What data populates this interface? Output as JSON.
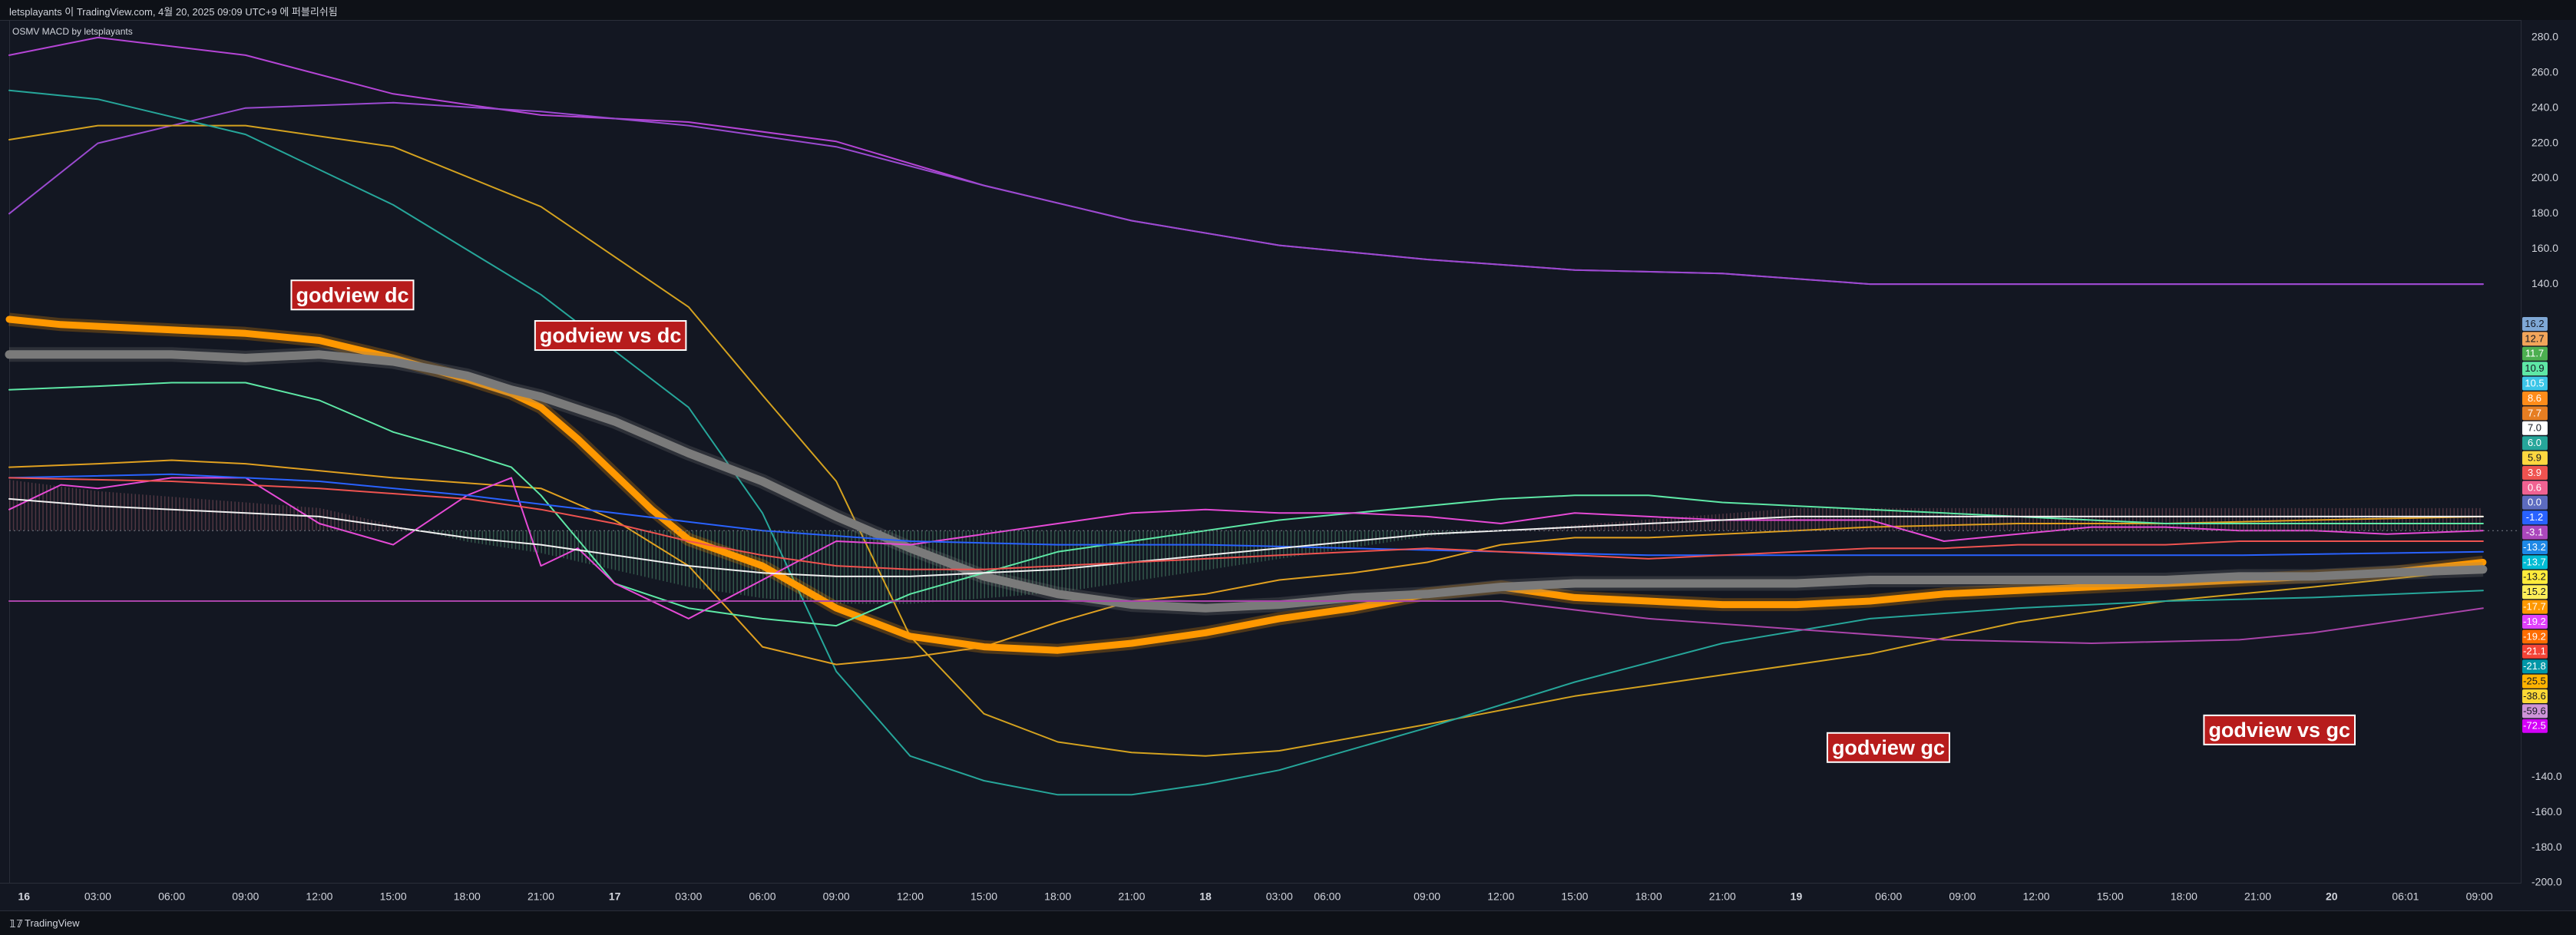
{
  "header": {
    "title": "letsplayants 이 TradingView.com, 4월 20, 2025 09:09 UTC+9 에 퍼블리쉬됨"
  },
  "indicator": {
    "title": "OSMV MACD by letsplayants"
  },
  "footer": {
    "brand": "TradingView"
  },
  "chart_data": {
    "type": "line",
    "title": "",
    "ylim": [
      -200,
      290
    ],
    "y_ticks": [
      280,
      260,
      240,
      220,
      200,
      180,
      160,
      140,
      -140,
      -160,
      -180,
      -200
    ],
    "x_ticks": [
      "16",
      "03:00",
      "06:00",
      "09:00",
      "12:00",
      "15:00",
      "18:00",
      "21:00",
      "17",
      "03:00",
      "06:00",
      "09:00",
      "12:00",
      "15:00",
      "18:00",
      "21:00",
      "18",
      "03:00",
      "06:00",
      "09:00",
      "12:00",
      "15:00",
      "18:00",
      "21:00",
      "19",
      "06:00",
      "09:00",
      "12:00",
      "15:00",
      "18:00",
      "21:00",
      "20",
      "06:01",
      "09:00"
    ],
    "x_tick_pos": [
      0,
      1,
      2,
      3,
      4,
      5,
      6,
      7,
      8,
      9,
      10,
      11,
      12,
      13,
      14,
      15,
      16,
      17,
      17.65,
      19,
      20,
      21,
      22,
      23,
      24,
      25.25,
      26.25,
      27.25,
      28.25,
      29.25,
      30.25,
      31.25,
      32.25,
      33.25
    ],
    "x_range": [
      -0.2,
      33.8
    ],
    "annotations": [
      {
        "text": "godview dc",
        "x": 3.6,
        "y": 133
      },
      {
        "text": "godview vs dc",
        "x": 6.9,
        "y": 110
      },
      {
        "text": "godview gc",
        "x": 24.4,
        "y": -124
      },
      {
        "text": "godview vs gc",
        "x": 29.5,
        "y": -114
      }
    ],
    "value_labels": [
      {
        "value": "16.2",
        "color": "#7fa8d6"
      },
      {
        "value": "12.7",
        "color": "#f2a55a"
      },
      {
        "value": "11.7",
        "color": "#4caf50"
      },
      {
        "value": "10.9",
        "color": "#5ee8a6"
      },
      {
        "value": "10.5",
        "color": "#3cc6e8"
      },
      {
        "value": "8.6",
        "color": "#ff8c1a"
      },
      {
        "value": "7.7",
        "color": "#e67e22"
      },
      {
        "value": "7.0",
        "color": "#ffffff"
      },
      {
        "value": "6.0",
        "color": "#26a69a"
      },
      {
        "value": "5.9",
        "color": "#ffd740"
      },
      {
        "value": "3.9",
        "color": "#ef5350"
      },
      {
        "value": "0.6",
        "color": "#f06292"
      },
      {
        "value": "0.0",
        "color": "#5c6bc0"
      },
      {
        "value": "-1.2",
        "color": "#2962ff"
      },
      {
        "value": "-3.1",
        "color": "#ab47bc"
      },
      {
        "value": "-13.2",
        "color": "#1e88e5"
      },
      {
        "value": "-13.7",
        "color": "#00bcd4"
      },
      {
        "value": "-13.2",
        "color": "#ffeb3b"
      },
      {
        "value": "-15.2",
        "color": "#ffee58"
      },
      {
        "value": "-17.7",
        "color": "#ff9800"
      },
      {
        "value": "-19.2",
        "color": "#e040fb"
      },
      {
        "value": "-19.2",
        "color": "#ff6d00"
      },
      {
        "value": "-21.1",
        "color": "#f44336"
      },
      {
        "value": "-21.8",
        "color": "#0097a7"
      },
      {
        "value": "-25.5",
        "color": "#ffb300"
      },
      {
        "value": "-38.6",
        "color": "#fdd835"
      },
      {
        "value": "-59.6",
        "color": "#ce93d8"
      },
      {
        "value": "-72.5",
        "color": "#d500f9"
      }
    ],
    "series": [
      {
        "color": "#b545d6",
        "width": 2,
        "x": [
          -0.2,
          1,
          3,
          5,
          7,
          9,
          11,
          13,
          15,
          17,
          19,
          21,
          23,
          25,
          27,
          29,
          31,
          33.3
        ],
        "y": [
          270,
          280,
          270,
          248,
          236,
          232,
          221,
          196,
          176,
          162,
          154,
          148,
          146,
          140,
          140,
          140,
          140,
          140
        ]
      },
      {
        "color": "#9b4ad0",
        "width": 2,
        "x": [
          -0.2,
          1,
          3,
          5,
          7,
          9,
          11,
          13,
          15,
          17,
          19,
          21,
          23,
          25,
          27,
          29,
          31,
          33.3
        ],
        "y": [
          180,
          220,
          240,
          243,
          238,
          230,
          218,
          196,
          176,
          162,
          154,
          148,
          146,
          140,
          140,
          140,
          140,
          140
        ]
      },
      {
        "color": "#d4a21f",
        "width": 2,
        "x": [
          -0.2,
          1,
          3,
          5,
          7,
          9,
          10,
          11,
          12,
          13,
          14,
          15,
          16,
          17,
          19,
          21,
          23,
          25,
          27,
          29,
          31,
          33.3
        ],
        "y": [
          222,
          230,
          230,
          218,
          184,
          127,
          77,
          28,
          -60,
          -104,
          -120,
          -126,
          -128,
          -125,
          -110,
          -94,
          -82,
          -70,
          -52,
          -40,
          -32,
          -22
        ]
      },
      {
        "color": "#26a69a",
        "width": 2,
        "x": [
          -0.2,
          1,
          3,
          5,
          7,
          9,
          10,
          11,
          12,
          13,
          14,
          15,
          16,
          17,
          19,
          21,
          23,
          25,
          27,
          29,
          31,
          33.3
        ],
        "y": [
          250,
          245,
          225,
          185,
          134,
          70,
          10,
          -80,
          -128,
          -142,
          -150,
          -150,
          -144,
          -136,
          -112,
          -86,
          -64,
          -50,
          -44,
          -40,
          -38,
          -34
        ]
      },
      {
        "color": "#e0a020",
        "width": 2,
        "x": [
          -0.2,
          1,
          2,
          3,
          5,
          7,
          8,
          9,
          10,
          11,
          12,
          13,
          14,
          15,
          16,
          17,
          18,
          19,
          20,
          21,
          22,
          23,
          24,
          25,
          27,
          29,
          31,
          33.3
        ],
        "y": [
          36,
          38,
          40,
          38,
          30,
          24,
          6,
          -20,
          -66,
          -76,
          -72,
          -66,
          -52,
          -40,
          -36,
          -28,
          -24,
          -18,
          -8,
          -4,
          -4,
          -2,
          0,
          2,
          4,
          4,
          6,
          8
        ]
      },
      {
        "color": "#ff9800",
        "width": 9,
        "x": [
          -0.2,
          0.5,
          1,
          2,
          3,
          4,
          5,
          6,
          6.6,
          7,
          7.5,
          8,
          8.5,
          9,
          10,
          11,
          12,
          13,
          14,
          15,
          16,
          17,
          18,
          19,
          20,
          21,
          22,
          23,
          24,
          25,
          26,
          27,
          28,
          29,
          30,
          31,
          32,
          33.3
        ],
        "y": [
          120,
          117,
          116,
          114,
          112,
          108,
          98,
          86,
          78,
          70,
          52,
          32,
          12,
          -5,
          -20,
          -44,
          -60,
          -66,
          -68,
          -64,
          -58,
          -50,
          -44,
          -36,
          -32,
          -38,
          -40,
          -42,
          -42,
          -40,
          -36,
          -34,
          -32,
          -30,
          -28,
          -26,
          -24,
          -18
        ]
      },
      {
        "color": "#7a7a7a",
        "width": 11,
        "x": [
          -0.2,
          1,
          2,
          3,
          4,
          5,
          6,
          6.6,
          7,
          8,
          9,
          10,
          11,
          12,
          13,
          14,
          15,
          16,
          17,
          18,
          19,
          20,
          21,
          22,
          23,
          24,
          25,
          26,
          27,
          28,
          29,
          30,
          31,
          32,
          33.3
        ],
        "y": [
          100,
          100,
          100,
          98,
          100,
          96,
          88,
          80,
          76,
          62,
          44,
          28,
          8,
          -10,
          -26,
          -36,
          -42,
          -44,
          -42,
          -38,
          -36,
          -32,
          -30,
          -30,
          -30,
          -30,
          -28,
          -28,
          -28,
          -28,
          -28,
          -26,
          -26,
          -24,
          -22
        ]
      },
      {
        "color": "#5ee8a6",
        "width": 2,
        "x": [
          -0.2,
          1,
          2,
          3,
          4,
          5,
          6,
          6.6,
          7,
          8,
          9,
          10,
          11,
          12,
          13,
          14,
          15,
          16,
          17,
          18,
          19,
          20,
          21,
          22,
          23,
          24,
          25,
          26,
          27,
          28,
          29,
          30,
          31,
          32,
          33.3
        ],
        "y": [
          80,
          82,
          84,
          84,
          74,
          56,
          44,
          36,
          20,
          -30,
          -44,
          -50,
          -54,
          -36,
          -24,
          -12,
          -6,
          0,
          6,
          10,
          14,
          18,
          20,
          20,
          16,
          14,
          12,
          10,
          8,
          6,
          4,
          4,
          4,
          4,
          4
        ]
      },
      {
        "color": "#e64ad6",
        "width": 2,
        "x": [
          -0.2,
          0.5,
          1,
          2,
          3,
          4,
          5,
          6,
          6.6,
          7,
          7.5,
          8,
          9,
          10,
          11,
          12,
          13,
          14,
          15,
          16,
          17,
          18,
          19,
          20,
          21,
          22,
          23,
          24,
          25,
          26,
          27,
          28,
          29,
          30,
          31,
          32,
          33.3
        ],
        "y": [
          12,
          26,
          24,
          30,
          30,
          4,
          -8,
          20,
          30,
          -20,
          -10,
          -30,
          -50,
          -28,
          -6,
          -8,
          -2,
          4,
          10,
          12,
          10,
          10,
          8,
          4,
          10,
          8,
          6,
          6,
          6,
          -6,
          -2,
          2,
          2,
          0,
          0,
          -2,
          0
        ]
      },
      {
        "color": "#2962ff",
        "width": 2,
        "x": [
          -0.2,
          2,
          4,
          6,
          8,
          10,
          12,
          14,
          16,
          18,
          20,
          22,
          24,
          26,
          28,
          30,
          33.3
        ],
        "y": [
          30,
          32,
          28,
          20,
          10,
          0,
          -6,
          -8,
          -8,
          -10,
          -12,
          -14,
          -14,
          -14,
          -14,
          -14,
          -12
        ]
      },
      {
        "color": "#f0f0f0",
        "width": 2,
        "x": [
          -0.2,
          1,
          2,
          3,
          4,
          5,
          6,
          7,
          8,
          9,
          10,
          11,
          12,
          13,
          14,
          15,
          16,
          17,
          18,
          19,
          20,
          21,
          22,
          23,
          24,
          25,
          26,
          27,
          28,
          29,
          30,
          31,
          32,
          33.3
        ],
        "y": [
          18,
          14,
          12,
          10,
          8,
          2,
          -4,
          -8,
          -14,
          -20,
          -24,
          -26,
          -26,
          -24,
          -22,
          -18,
          -14,
          -10,
          -6,
          -2,
          0,
          2,
          4,
          6,
          8,
          8,
          8,
          8,
          8,
          8,
          8,
          8,
          8,
          8
        ]
      },
      {
        "color": "#ef5350",
        "width": 2,
        "x": [
          -0.2,
          2,
          4,
          6,
          7,
          8,
          9,
          10,
          11,
          12,
          13,
          14,
          15,
          16,
          17,
          18,
          19,
          20,
          21,
          22,
          23,
          24,
          25,
          26,
          27,
          28,
          29,
          30,
          31,
          32,
          33.3
        ],
        "y": [
          30,
          28,
          24,
          18,
          12,
          4,
          -6,
          -14,
          -20,
          -22,
          -22,
          -20,
          -18,
          -16,
          -14,
          -12,
          -10,
          -12,
          -14,
          -16,
          -14,
          -12,
          -10,
          -10,
          -8,
          -8,
          -8,
          -6,
          -6,
          -6,
          -6
        ]
      },
      {
        "color": "#aa44aa",
        "width": 2,
        "x": [
          -0.2,
          2,
          4,
          6,
          8,
          10,
          12,
          14,
          16,
          18,
          20,
          22,
          24,
          26,
          28,
          30,
          31,
          33.3
        ],
        "y": [
          -40,
          -40,
          -40,
          -40,
          -40,
          -40,
          -40,
          -40,
          -40,
          -40,
          -40,
          -50,
          -56,
          -62,
          -64,
          -62,
          -58,
          -44
        ]
      }
    ]
  }
}
